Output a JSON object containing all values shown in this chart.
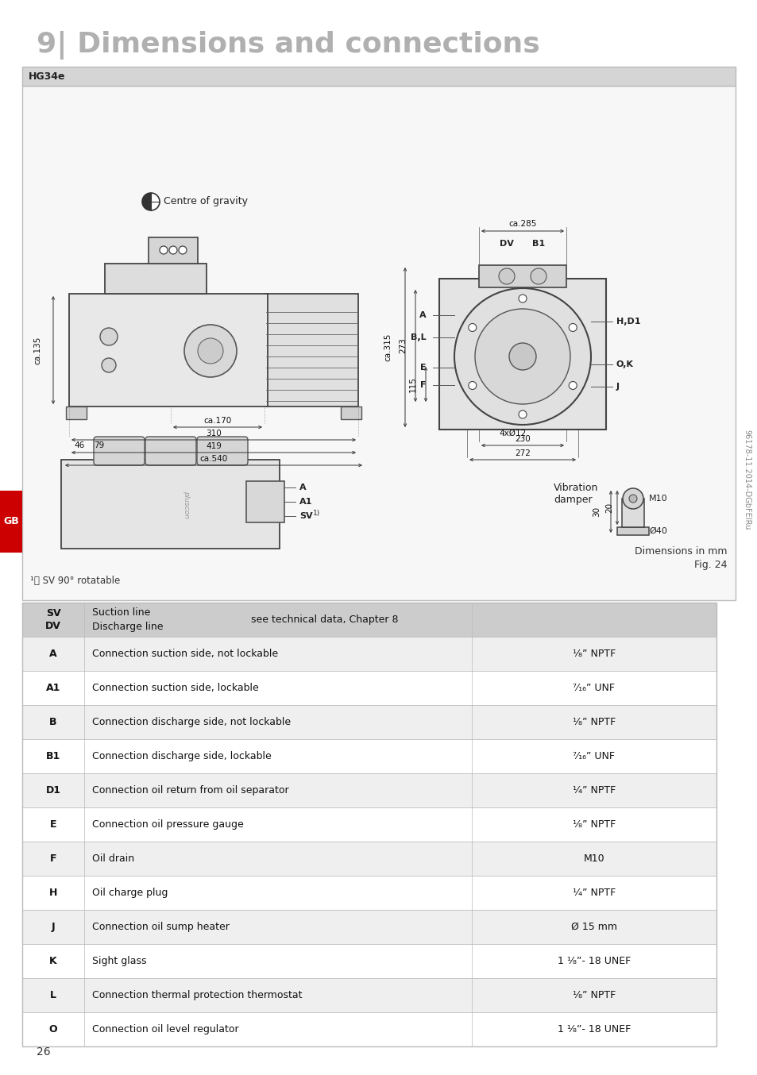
{
  "title": "9| Dimensions and connections",
  "title_color": "#b0b0b0",
  "title_fontsize": 26,
  "page_number": "26",
  "page_bg": "#ffffff",
  "diagram_box_label": "HG34e",
  "diagram_box_border": "#bbbbbb",
  "diagram_box_header_bg": "#d5d5d5",
  "diagram_box_body_bg": "#f7f7f7",
  "sidebar_label": "GB",
  "sidebar_bg": "#cc0000",
  "sidebar_text_color": "#ffffff",
  "doc_code": "96178-11.2014-DGbFEIRu",
  "table_header_bg": "#cccccc",
  "table_alt_bg": "#efefef",
  "table_row_bg": "#ffffff",
  "table_border": "#bbbbbb",
  "table_rows": [
    {
      "code": "SV\nDV",
      "desc1": "Suction line",
      "desc2": "Discharge line",
      "note": "see technical data, Chapter 8",
      "value": "",
      "header": true
    },
    {
      "code": "A",
      "description": "Connection suction side, not lockable",
      "value": "¹⁄₈” NPTF",
      "header": false
    },
    {
      "code": "A1",
      "description": "Connection suction side, lockable",
      "value": "⁷⁄₁₆” UNF",
      "header": false
    },
    {
      "code": "B",
      "description": "Connection discharge side, not lockable",
      "value": "¹⁄₈” NPTF",
      "header": false
    },
    {
      "code": "B1",
      "description": "Connection discharge side, lockable",
      "value": "⁷⁄₁₆” UNF",
      "header": false
    },
    {
      "code": "D1",
      "description": "Connection oil return from oil separator",
      "value": "¹⁄₄” NPTF",
      "header": false
    },
    {
      "code": "E",
      "description": "Connection oil pressure gauge",
      "value": "¹⁄₈” NPTF",
      "header": false
    },
    {
      "code": "F",
      "description": "Oil drain",
      "value": "M10",
      "header": false
    },
    {
      "code": "H",
      "description": "Oil charge plug",
      "value": "¹⁄₄” NPTF",
      "header": false
    },
    {
      "code": "J",
      "description": "Connection oil sump heater",
      "value": "Ø 15 mm",
      "header": false
    },
    {
      "code": "K",
      "description": "Sight glass",
      "value": "1 ¹⁄₈”- 18 UNEF",
      "header": false
    },
    {
      "code": "L",
      "description": "Connection thermal protection thermostat",
      "value": "¹⁄₈” NPTF",
      "header": false
    },
    {
      "code": "O",
      "description": "Connection oil level regulator",
      "value": "1 ¹⁄₈”- 18 UNEF",
      "header": false
    }
  ]
}
